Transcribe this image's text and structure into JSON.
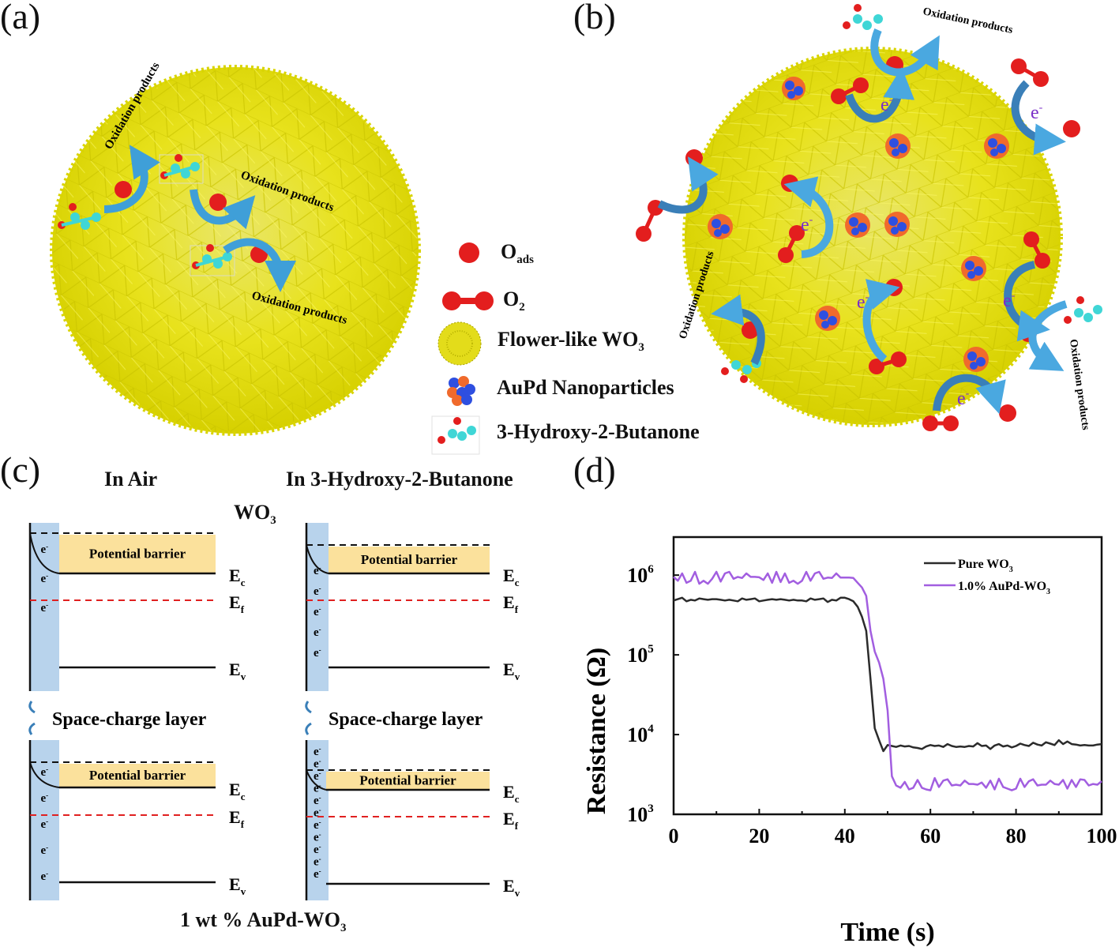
{
  "panels": {
    "a": {
      "label": "(a)",
      "annotations": [
        "Oxidation products",
        "Oxidation products",
        "Oxidation products"
      ]
    },
    "b": {
      "label": "(b)",
      "annotations": [
        "Oxidation products",
        "Oxidation products",
        "Oxidation products"
      ],
      "electron_label": "e",
      "electron_sup": "-"
    },
    "c": {
      "label": "(c)"
    },
    "d": {
      "label": "(d)"
    }
  },
  "legend": {
    "items": [
      {
        "name": "oads",
        "text": "O",
        "sub": "ads"
      },
      {
        "name": "o2",
        "text": "O",
        "sub": "2"
      },
      {
        "name": "wo3",
        "text": "Flower-like WO",
        "sub": "3"
      },
      {
        "name": "aupd",
        "text": "AuPd Nanoparticles",
        "sub": ""
      },
      {
        "name": "hb",
        "text": "3-Hydroxy-2-Butanone",
        "sub": ""
      }
    ]
  },
  "band": {
    "col_in_air": "In Air",
    "col_in_gas": "In 3-Hydroxy-2-Butanone",
    "row_top": {
      "main": "WO",
      "sub": "3"
    },
    "row_bottom": {
      "main": "1 wt % AuPd-WO",
      "sub": "3"
    },
    "space_charge": "Space-charge layer",
    "barrier": "Potential barrier",
    "ec": {
      "main": "E",
      "sub": "c"
    },
    "ef": {
      "main": "E",
      "sub": "f"
    },
    "ev": {
      "main": "E",
      "sub": "v"
    },
    "electron": "e",
    "electron_sup": "-",
    "colors": {
      "layer": "#b8d3ec",
      "barrier": "#fbe19c",
      "fermi": "#e02020"
    }
  },
  "chart_data": {
    "type": "line",
    "title": "",
    "xlabel": "Time (s)",
    "ylabel": "Resistance (Ω)",
    "xlim": [
      0,
      100
    ],
    "ylim": [
      1000,
      3000000
    ],
    "yscale": "log",
    "xticks": [
      "0",
      "20",
      "40",
      "60",
      "80",
      "100"
    ],
    "yticks": [
      {
        "base": "10",
        "exp": "3",
        "value": 1000
      },
      {
        "base": "10",
        "exp": "4",
        "value": 10000
      },
      {
        "base": "10",
        "exp": "5",
        "value": 100000
      },
      {
        "base": "10",
        "exp": "6",
        "value": 1000000
      }
    ],
    "legend_position": "top-right",
    "series": [
      {
        "name": "Pure WO",
        "name_sub": "3",
        "color": "#2b2b2b",
        "x": [
          0,
          1,
          2,
          3,
          4,
          5,
          6,
          7,
          8,
          9,
          10,
          11,
          12,
          13,
          14,
          15,
          16,
          17,
          18,
          19,
          20,
          21,
          22,
          23,
          24,
          25,
          26,
          27,
          28,
          29,
          30,
          31,
          32,
          33,
          34,
          35,
          36,
          37,
          38,
          39,
          40,
          41,
          42,
          43,
          44,
          45,
          46,
          47,
          48,
          49,
          50,
          51,
          52,
          53,
          54,
          55,
          56,
          57,
          58,
          59,
          60,
          61,
          62,
          63,
          64,
          65,
          66,
          67,
          68,
          69,
          70,
          71,
          72,
          73,
          74,
          75,
          76,
          77,
          78,
          79,
          80,
          81,
          82,
          83,
          84,
          85,
          86,
          87,
          88,
          89,
          90,
          91,
          92,
          93,
          94,
          95,
          96,
          97,
          98,
          99,
          100
        ],
        "y": [
          480000,
          500000,
          520000,
          470000,
          490000,
          480000,
          510000,
          500000,
          490000,
          500000,
          500000,
          490000,
          480000,
          490000,
          480000,
          470000,
          510000,
          490000,
          500000,
          510000,
          470000,
          480000,
          490000,
          500000,
          490000,
          500000,
          490000,
          480000,
          490000,
          480000,
          480000,
          470000,
          510000,
          490000,
          500000,
          510000,
          460000,
          490000,
          480000,
          520000,
          520000,
          500000,
          470000,
          400000,
          300000,
          200000,
          50000,
          12000,
          8500,
          6200,
          7400,
          7200,
          7000,
          7300,
          7100,
          7200,
          6900,
          6800,
          6600,
          7100,
          7400,
          7200,
          7300,
          7000,
          7600,
          7200,
          7000,
          7100,
          7000,
          7200,
          7100,
          7800,
          7200,
          7300,
          6600,
          7300,
          7600,
          7100,
          7300,
          6900,
          7200,
          7700,
          7400,
          7200,
          7900,
          7500,
          7300,
          8000,
          7700,
          7400,
          8500,
          7600,
          8200,
          7600,
          7500,
          7300,
          7400,
          7300,
          7300,
          7500,
          7600
        ]
      },
      {
        "name": "1.0% AuPd-WO",
        "name_sub": "3",
        "color": "#a25ee0",
        "x": [
          0,
          1,
          2,
          3,
          4,
          5,
          6,
          7,
          8,
          9,
          10,
          11,
          12,
          13,
          14,
          15,
          16,
          17,
          18,
          19,
          20,
          21,
          22,
          23,
          24,
          25,
          26,
          27,
          28,
          29,
          30,
          31,
          32,
          33,
          34,
          35,
          36,
          37,
          38,
          39,
          40,
          41,
          42,
          43,
          44,
          45,
          46,
          47,
          48,
          49,
          50,
          51,
          52,
          53,
          54,
          55,
          56,
          57,
          58,
          59,
          60,
          61,
          62,
          63,
          64,
          65,
          66,
          67,
          68,
          69,
          70,
          71,
          72,
          73,
          74,
          75,
          76,
          77,
          78,
          79,
          80,
          81,
          82,
          83,
          84,
          85,
          86,
          87,
          88,
          89,
          90,
          91,
          92,
          93,
          94,
          95,
          96,
          97,
          98,
          99,
          100
        ],
        "y": [
          950000,
          850000,
          1050000,
          800000,
          850000,
          1100000,
          780000,
          850000,
          780000,
          900000,
          1100000,
          830000,
          1050000,
          1100000,
          900000,
          950000,
          920000,
          1050000,
          950000,
          950000,
          940000,
          870000,
          1050000,
          800000,
          1100000,
          820000,
          1050000,
          800000,
          850000,
          780000,
          850000,
          1100000,
          850000,
          1050000,
          1100000,
          900000,
          930000,
          920000,
          1050000,
          930000,
          930000,
          930000,
          920000,
          800000,
          700000,
          550000,
          200000,
          110000,
          80000,
          50000,
          20000,
          3000,
          2300,
          2150,
          2550,
          2050,
          2150,
          2700,
          2150,
          2050,
          2000,
          2850,
          2200,
          2650,
          2750,
          2300,
          2350,
          2300,
          2650,
          2400,
          2400,
          2350,
          2500,
          2150,
          2650,
          2050,
          2800,
          2200,
          2100,
          2000,
          2100,
          2800,
          2200,
          2600,
          2750,
          2300,
          2350,
          2350,
          2650,
          2400,
          2350,
          2700,
          2100,
          2700,
          2200,
          2750,
          2700,
          2300,
          2400,
          2350,
          2600
        ]
      }
    ]
  }
}
